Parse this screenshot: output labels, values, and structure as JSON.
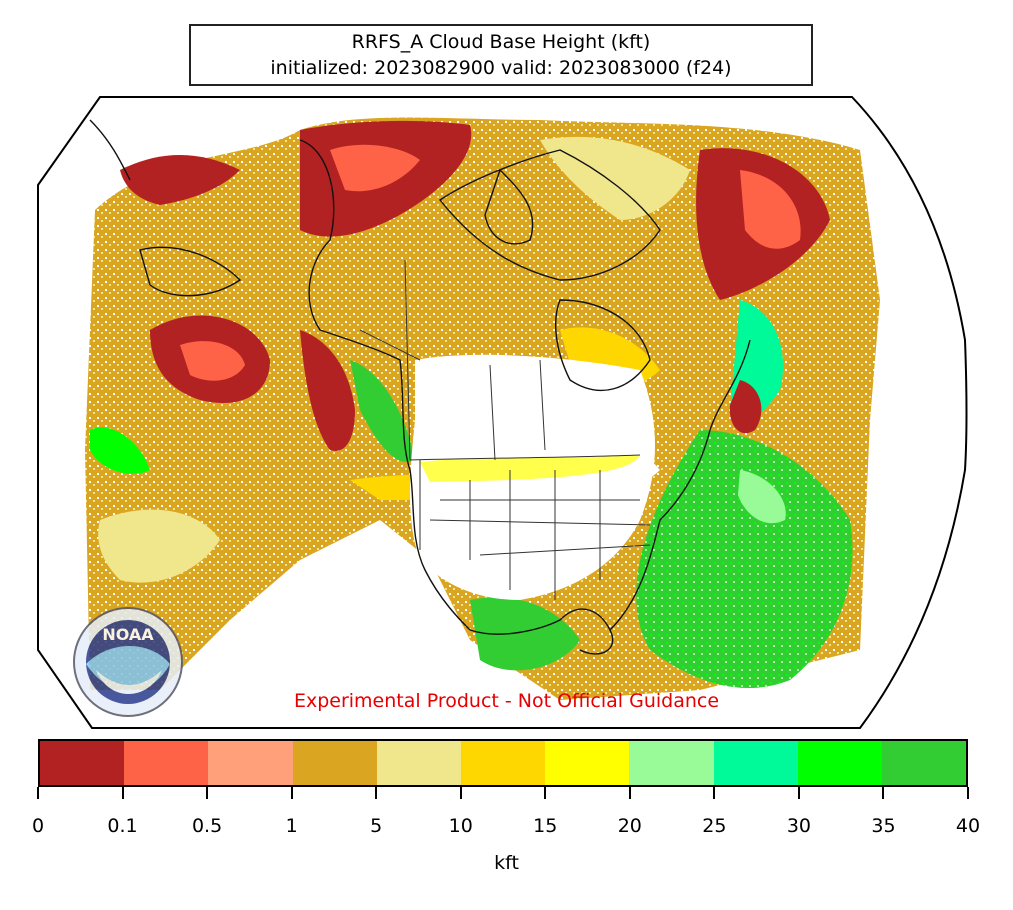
{
  "title": {
    "line1": "RRFS_A Cloud Base Height (kft)",
    "line2": "initialized: 2023082900 valid: 2023083000 (f24)"
  },
  "disclaimer": "Experimental Product - Not Official Guidance",
  "logo": {
    "text": "NOAA",
    "icon": "noaa-logo-icon"
  },
  "colorbar": {
    "unit": "kft",
    "ticks": [
      "0",
      "0.1",
      "0.5",
      "1",
      "5",
      "10",
      "15",
      "20",
      "25",
      "30",
      "35",
      "40"
    ],
    "colors": [
      "#b22222",
      "#ff6347",
      "#ffa07a",
      "#daa520",
      "#f0e68c",
      "#ffd700",
      "#ffff00",
      "#98fb98",
      "#00fa9a",
      "#00ff00",
      "#32cd32"
    ]
  },
  "map": {
    "projection_outline": true,
    "background": "#ffffff",
    "clear_sky_color": "#ffffff",
    "boundaries_color": "#000000"
  }
}
